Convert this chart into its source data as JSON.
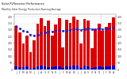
{
  "title": "Monthly Solar Energy Production Running Average",
  "subtitle": "Solar PV/Inverter Performance",
  "bar_color": "#dd0000",
  "avg_color": "#2222cc",
  "bg_color": "#ffffff",
  "grid_color": "#cccccc",
  "values": [
    330,
    280,
    200,
    260,
    130,
    220,
    350,
    390,
    330,
    370,
    260,
    340,
    390,
    170,
    375,
    355,
    400,
    375,
    195,
    385,
    370,
    165,
    305,
    345,
    295,
    325,
    355,
    395
  ],
  "avg_values": [
    330,
    310,
    295,
    285,
    265,
    258,
    265,
    278,
    282,
    290,
    288,
    293,
    302,
    292,
    296,
    300,
    305,
    308,
    302,
    308,
    312,
    307,
    307,
    309,
    307,
    309,
    312,
    316
  ],
  "small_values": [
    22,
    20,
    18,
    22,
    8,
    14,
    24,
    28,
    26,
    20,
    16,
    24,
    26,
    10,
    25,
    26,
    30,
    28,
    12,
    28,
    26,
    10,
    20,
    24,
    20,
    23,
    25,
    28
  ],
  "ylim": [
    0,
    420
  ],
  "yticks": [
    0,
    50,
    100,
    150,
    200,
    250,
    300,
    350,
    400
  ],
  "ytick_labels": [
    "0",
    "50",
    "100",
    "150",
    "200",
    "250",
    "300",
    "350",
    "400"
  ],
  "n_bars": 28
}
